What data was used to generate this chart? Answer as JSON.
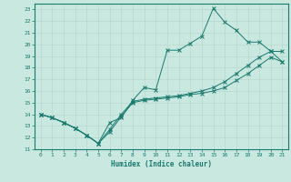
{
  "xlabel": "Humidex (Indice chaleur)",
  "xlim": [
    -0.5,
    21.5
  ],
  "ylim": [
    11,
    23.5
  ],
  "yticks": [
    11,
    12,
    13,
    14,
    15,
    16,
    17,
    18,
    19,
    20,
    21,
    22,
    23
  ],
  "xticks": [
    0,
    1,
    2,
    3,
    4,
    5,
    6,
    7,
    8,
    9,
    10,
    11,
    12,
    13,
    14,
    15,
    16,
    17,
    18,
    19,
    20,
    21
  ],
  "line_color": "#1a7a6e",
  "bg_color": "#c8e8e0",
  "grid_color": "#b8d8d0",
  "line1_x": [
    0,
    1,
    2,
    3,
    4,
    5,
    6,
    7,
    8,
    9,
    10,
    11,
    12,
    13,
    14,
    15,
    16,
    17,
    18,
    19,
    20,
    21
  ],
  "line1_y": [
    14.0,
    13.7,
    13.3,
    12.8,
    12.2,
    11.5,
    13.3,
    13.7,
    15.2,
    16.3,
    16.1,
    19.5,
    19.5,
    20.1,
    20.7,
    23.1,
    21.9,
    21.2,
    20.2,
    20.2,
    19.4,
    18.5
  ],
  "line2_x": [
    0,
    1,
    2,
    3,
    4,
    5,
    6,
    7,
    8,
    9,
    10,
    11,
    12,
    13,
    14,
    15,
    16,
    17,
    18,
    19,
    20,
    21
  ],
  "line2_y": [
    14.0,
    13.7,
    13.3,
    12.8,
    12.2,
    11.5,
    12.5,
    13.8,
    15.0,
    15.2,
    15.3,
    15.4,
    15.5,
    15.7,
    15.8,
    16.0,
    16.3,
    16.9,
    17.5,
    18.2,
    18.9,
    18.5
  ],
  "line3_x": [
    0,
    1,
    2,
    3,
    4,
    5,
    6,
    7,
    8,
    9,
    10,
    11,
    12,
    13,
    14,
    15,
    16,
    17,
    18,
    19,
    20,
    21
  ],
  "line3_y": [
    14.0,
    13.7,
    13.3,
    12.8,
    12.2,
    11.5,
    12.7,
    14.0,
    15.1,
    15.3,
    15.4,
    15.5,
    15.6,
    15.8,
    16.0,
    16.3,
    16.8,
    17.5,
    18.2,
    18.9,
    19.4,
    19.4
  ]
}
